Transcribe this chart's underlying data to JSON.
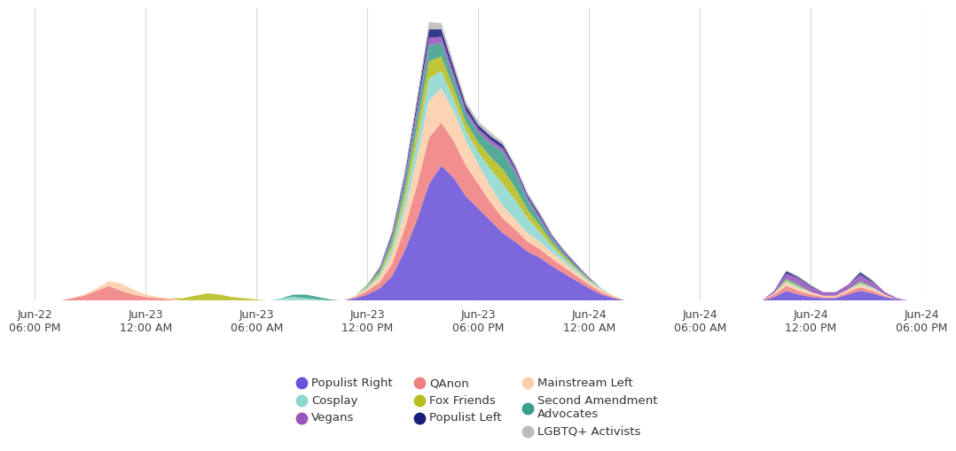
{
  "x_tick_labels": [
    "Jun-22\n06:00 PM",
    "Jun-23\n12:00 AM",
    "Jun-23\n06:00 AM",
    "Jun-23\n12:00 PM",
    "Jun-23\n06:00 PM",
    "Jun-24\n12:00 AM",
    "Jun-24\n06:00 AM",
    "Jun-24\n12:00 PM",
    "Jun-24\n06:00 PM"
  ],
  "n_points": 73,
  "series": {
    "Populist Right": [
      0,
      0,
      0,
      0,
      0,
      0,
      0,
      0,
      0,
      0,
      0,
      0,
      0,
      0,
      0,
      0,
      0,
      0,
      0,
      0,
      0,
      0,
      0,
      0,
      0,
      0,
      2,
      5,
      10,
      20,
      40,
      65,
      95,
      110,
      100,
      85,
      75,
      65,
      55,
      48,
      40,
      35,
      28,
      22,
      16,
      10,
      5,
      2,
      0,
      0,
      0,
      0,
      0,
      0,
      0,
      0,
      0,
      0,
      0,
      0,
      3,
      8,
      5,
      3,
      2,
      2,
      5,
      8,
      6,
      3,
      1,
      0,
      0
    ],
    "QAnon": [
      0,
      0,
      0,
      2,
      4,
      8,
      12,
      8,
      5,
      3,
      2,
      1,
      0,
      0,
      0,
      0,
      0,
      0,
      0,
      0,
      0,
      0,
      0,
      0,
      0,
      0,
      1,
      3,
      5,
      10,
      18,
      28,
      38,
      35,
      30,
      25,
      20,
      15,
      12,
      10,
      8,
      7,
      6,
      5,
      4,
      3,
      2,
      1,
      0,
      0,
      0,
      0,
      0,
      0,
      0,
      0,
      0,
      0,
      0,
      0,
      2,
      4,
      3,
      2,
      1,
      1,
      2,
      3,
      2,
      1,
      0,
      0,
      0
    ],
    "Mainstream Left": [
      0,
      0,
      0,
      0,
      1,
      2,
      4,
      6,
      4,
      2,
      1,
      1,
      0,
      0,
      0,
      0,
      0,
      0,
      0,
      0,
      0,
      0,
      0,
      0,
      0,
      0,
      1,
      2,
      4,
      8,
      14,
      22,
      30,
      28,
      24,
      20,
      16,
      13,
      10,
      8,
      7,
      6,
      5,
      4,
      3,
      2,
      2,
      1,
      0,
      0,
      0,
      0,
      0,
      0,
      0,
      0,
      0,
      0,
      0,
      0,
      1,
      3,
      2,
      2,
      1,
      1,
      2,
      2,
      2,
      1,
      0,
      0,
      0
    ],
    "Cosplay": [
      0,
      0,
      0,
      0,
      0,
      0,
      0,
      0,
      0,
      0,
      0,
      0,
      0,
      0,
      0,
      0,
      0,
      0,
      0,
      0,
      2,
      3,
      2,
      1,
      0,
      0,
      0,
      1,
      2,
      5,
      9,
      14,
      18,
      14,
      10,
      8,
      10,
      14,
      18,
      16,
      12,
      8,
      5,
      3,
      2,
      1,
      1,
      0,
      0,
      0,
      0,
      0,
      0,
      0,
      0,
      0,
      0,
      0,
      0,
      0,
      0,
      1,
      1,
      0,
      0,
      0,
      0,
      1,
      1,
      0,
      0,
      0,
      0
    ],
    "Fox Friends": [
      0,
      0,
      0,
      0,
      0,
      0,
      0,
      0,
      0,
      0,
      0,
      0,
      2,
      4,
      6,
      5,
      3,
      2,
      1,
      0,
      0,
      0,
      0,
      0,
      0,
      0,
      0,
      1,
      2,
      4,
      7,
      11,
      14,
      12,
      9,
      7,
      8,
      10,
      12,
      10,
      7,
      5,
      3,
      2,
      1,
      1,
      0,
      0,
      0,
      0,
      0,
      0,
      0,
      0,
      0,
      0,
      0,
      0,
      0,
      0,
      0,
      1,
      1,
      0,
      0,
      0,
      0,
      1,
      0,
      0,
      0,
      0,
      0
    ],
    "Second Amendment Advocates": [
      0,
      0,
      0,
      0,
      0,
      0,
      0,
      0,
      0,
      0,
      0,
      0,
      0,
      0,
      0,
      0,
      0,
      0,
      0,
      0,
      0,
      2,
      3,
      2,
      1,
      0,
      0,
      1,
      2,
      4,
      7,
      10,
      13,
      11,
      8,
      7,
      8,
      11,
      14,
      12,
      8,
      5,
      3,
      2,
      1,
      1,
      0,
      0,
      0,
      0,
      0,
      0,
      0,
      0,
      0,
      0,
      0,
      0,
      0,
      0,
      0,
      1,
      1,
      0,
      0,
      0,
      0,
      1,
      0,
      0,
      0,
      0,
      0
    ],
    "Vegans": [
      0,
      0,
      0,
      0,
      0,
      0,
      0,
      0,
      0,
      0,
      0,
      0,
      0,
      0,
      0,
      0,
      0,
      0,
      0,
      0,
      0,
      0,
      0,
      0,
      0,
      0,
      0,
      0,
      1,
      2,
      3,
      5,
      6,
      5,
      4,
      3,
      3,
      3,
      3,
      3,
      2,
      2,
      2,
      1,
      1,
      1,
      0,
      0,
      0,
      0,
      0,
      0,
      0,
      0,
      0,
      0,
      0,
      0,
      0,
      0,
      2,
      4,
      5,
      4,
      3,
      3,
      4,
      5,
      4,
      2,
      1,
      0,
      0
    ],
    "Populist Left": [
      0,
      0,
      0,
      0,
      0,
      0,
      0,
      0,
      0,
      0,
      0,
      0,
      0,
      0,
      0,
      0,
      0,
      0,
      0,
      0,
      0,
      0,
      0,
      0,
      0,
      0,
      0,
      0,
      1,
      2,
      3,
      5,
      7,
      6,
      5,
      4,
      3,
      3,
      3,
      2,
      2,
      2,
      1,
      1,
      1,
      0,
      0,
      0,
      0,
      0,
      0,
      0,
      0,
      0,
      0,
      0,
      0,
      0,
      0,
      0,
      0,
      2,
      1,
      1,
      0,
      0,
      0,
      2,
      1,
      0,
      0,
      0,
      0
    ],
    "LGBTQ+ Activists": [
      0,
      0,
      0,
      0,
      0,
      0,
      0,
      0,
      0,
      0,
      0,
      0,
      0,
      0,
      0,
      0,
      0,
      0,
      0,
      0,
      0,
      0,
      0,
      0,
      0,
      0,
      0,
      0,
      1,
      2,
      3,
      4,
      6,
      5,
      4,
      3,
      3,
      3,
      2,
      2,
      2,
      2,
      1,
      1,
      1,
      0,
      0,
      0,
      0,
      0,
      0,
      0,
      0,
      0,
      0,
      0,
      0,
      0,
      0,
      0,
      0,
      1,
      1,
      1,
      0,
      0,
      0,
      1,
      1,
      0,
      0,
      0,
      0
    ]
  },
  "colors": {
    "Populist Right": "#6B52D9",
    "QAnon": "#F08080",
    "Mainstream Left": "#FCCFAA",
    "Cosplay": "#8ED8D0",
    "Fox Friends": "#B8BC1C",
    "Second Amendment Advocates": "#3D9E8C",
    "Vegans": "#9955BB",
    "Populist Left": "#1A1F7C",
    "LGBTQ+ Activists": "#BBBBBB"
  },
  "background_color": "#FFFFFF",
  "grid_color": "#D8D8D8",
  "tick_label_fontsize": 9,
  "legend_fontsize": 9.5
}
